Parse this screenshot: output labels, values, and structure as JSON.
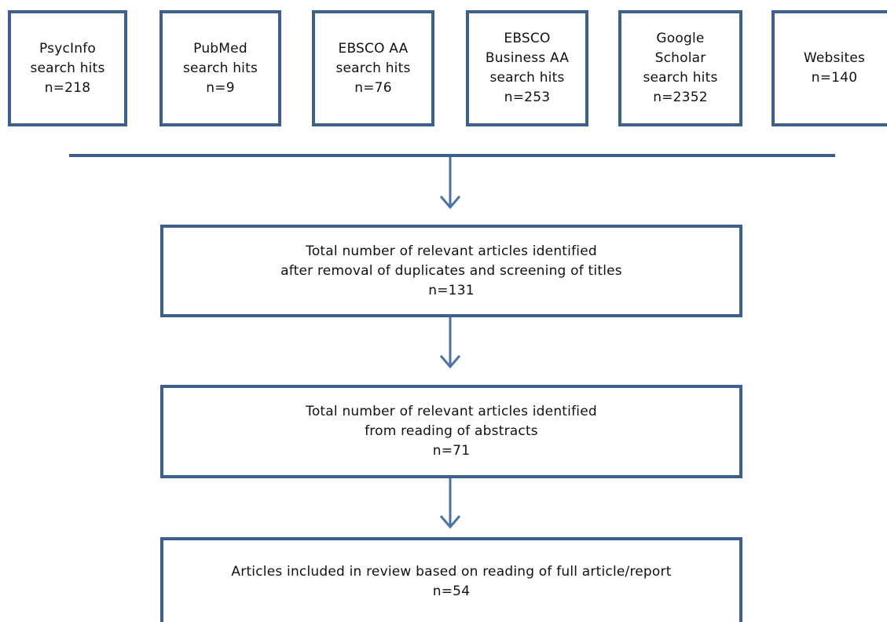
{
  "sources": [
    {
      "lines": [
        "PsycInfo",
        "search hits",
        "n=218"
      ]
    },
    {
      "lines": [
        "PubMed",
        "search hits",
        "n=9"
      ]
    },
    {
      "lines": [
        "EBSCO AA",
        "search hits",
        "n=76"
      ]
    },
    {
      "lines": [
        "EBSCO",
        "Business AA",
        "search hits",
        "n=253"
      ]
    },
    {
      "lines": [
        "Google",
        "Scholar",
        "search hits",
        "n=2352"
      ]
    },
    {
      "lines": [
        "Websites",
        "n=140"
      ]
    }
  ],
  "steps": [
    {
      "lines": [
        "Total number of relevant articles identified",
        "after removal of duplicates and screening of titles",
        "n=131"
      ]
    },
    {
      "lines": [
        "Total number of relevant articles identified",
        "from reading of abstracts",
        "n=71"
      ]
    },
    {
      "lines": [
        "Articles included in review based on reading of full article/report",
        "n=54"
      ]
    }
  ]
}
